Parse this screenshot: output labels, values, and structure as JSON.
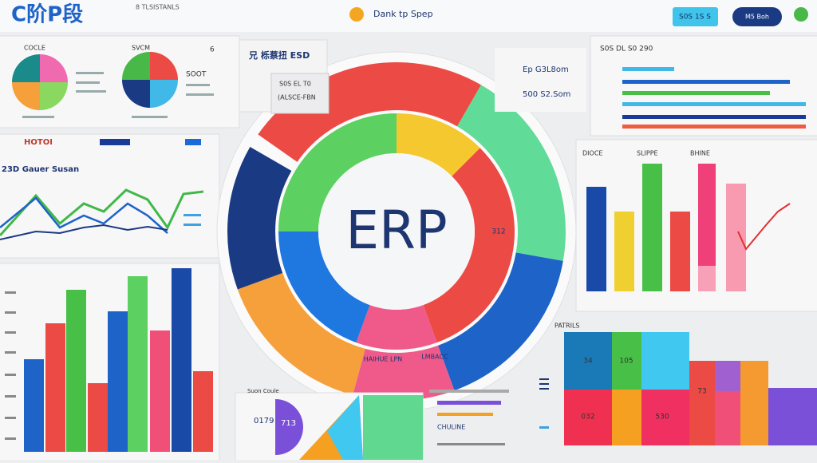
{
  "header": {
    "logo": "C阶P段",
    "subtitle": "8 TLSISTANLS",
    "search": "Dank tp Spep",
    "button_primary": "S0S 1S S",
    "button_secondary": "M5 Boh"
  },
  "center": {
    "title": "ERP",
    "side_value": "312",
    "label_left": "HAIHUE LPN",
    "label_right": "LMBACC"
  },
  "pies_panel": {
    "label_1": "COCLE",
    "label_2": "SVCM",
    "label_3": "6",
    "label_4": "SOOT"
  },
  "lines_panel": {
    "tab": "HOTOI",
    "title": "23D Gauer Susan"
  },
  "overlay": {
    "title": "兄 栎蔡扭 ESD",
    "line_1": "S0S EL T0",
    "line_2": "(ALSCE-FBN"
  },
  "bars_list_panel": {
    "title": "S0S DL S0 290",
    "line_1": "Ep G3L8om",
    "line_2": "500 S2.Som"
  },
  "columns_panel": {
    "label_1": "DIOCE",
    "label_2": "SLIPPE",
    "label_3": "BHINE"
  },
  "treemap_panel": {
    "title": "PATRILS",
    "cells": [
      "34",
      "105",
      "73",
      "032",
      "530"
    ]
  },
  "bottom_panel": {
    "title": "Suon Coule",
    "value_1": "0179",
    "value_2": "713",
    "legend": "CHULINE"
  }
}
